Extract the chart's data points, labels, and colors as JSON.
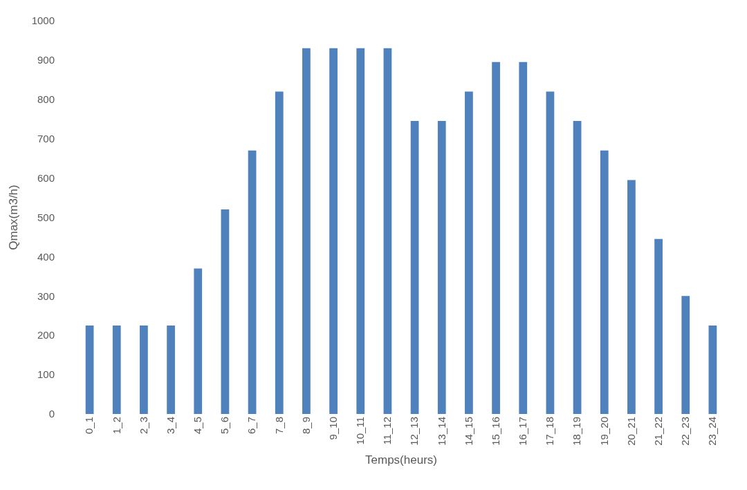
{
  "chart_data": {
    "type": "bar",
    "xlabel": "Temps(heurs)",
    "ylabel": "Qmax(m3/h)",
    "categories": [
      "0_1",
      "1_2",
      "2_3",
      "3_4",
      "4_5",
      "5_6",
      "6_7",
      "7_8",
      "8_9",
      "9_10",
      "10_11",
      "11_12",
      "12_13",
      "13_14",
      "14_15",
      "15_16",
      "16_17",
      "17_18",
      "18_19",
      "19_20",
      "20_21",
      "21_22",
      "22_23",
      "23_24"
    ],
    "values": [
      225,
      225,
      225,
      225,
      370,
      520,
      670,
      820,
      930,
      930,
      930,
      930,
      745,
      745,
      820,
      895,
      895,
      820,
      745,
      670,
      595,
      445,
      300,
      225
    ],
    "color": "#4f81bd",
    "ylim": [
      0,
      1000
    ],
    "yticks": [
      0,
      100,
      200,
      300,
      400,
      500,
      600,
      700,
      800,
      900,
      1000
    ],
    "grid": false,
    "legend": false
  }
}
